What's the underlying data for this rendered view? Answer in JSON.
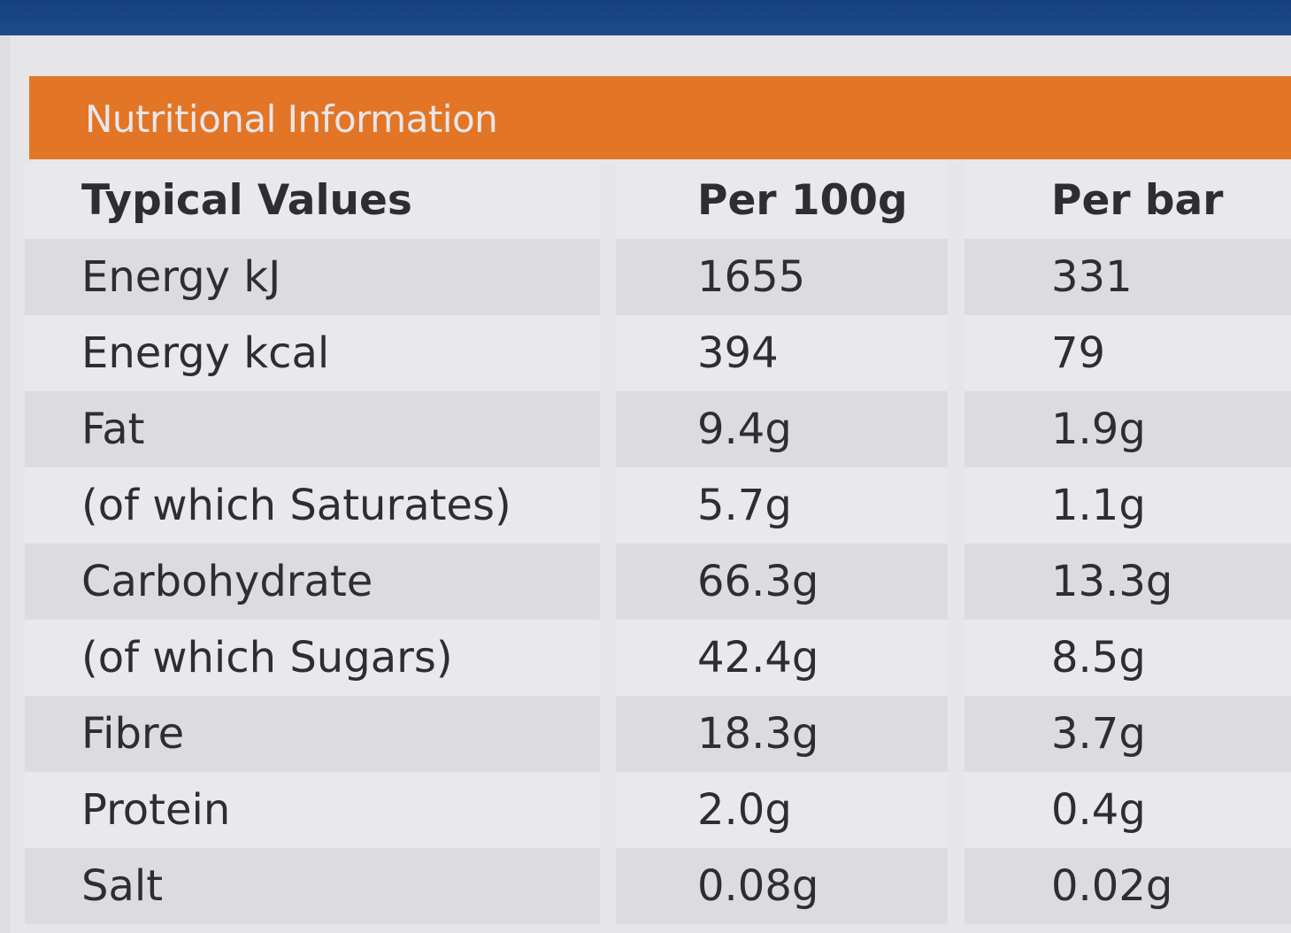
{
  "title": "Nutritional Information",
  "columns": [
    "Typical Values",
    "Per 100g",
    "Per bar"
  ],
  "rows": [
    {
      "name": "Energy kJ",
      "per100g": "1655",
      "perBar": "331"
    },
    {
      "name": "Energy kcal",
      "per100g": "394",
      "perBar": "79"
    },
    {
      "name": "Fat",
      "per100g": "9.4g",
      "perBar": "1.9g"
    },
    {
      "name": "(of which Saturates)",
      "per100g": "5.7g",
      "perBar": "1.1g"
    },
    {
      "name": "Carbohydrate",
      "per100g": "66.3g",
      "perBar": "13.3g"
    },
    {
      "name": "(of which Sugars)",
      "per100g": "42.4g",
      "perBar": "8.5g"
    },
    {
      "name": "Fibre",
      "per100g": "18.3g",
      "perBar": "3.7g"
    },
    {
      "name": "Protein",
      "per100g": "2.0g",
      "perBar": "0.4g"
    },
    {
      "name": "Salt",
      "per100g": "0.08g",
      "perBar": "0.02g"
    }
  ],
  "colors": {
    "header": "#e27626",
    "top_band": "#1c4b8c",
    "text": "#2e2d30"
  }
}
